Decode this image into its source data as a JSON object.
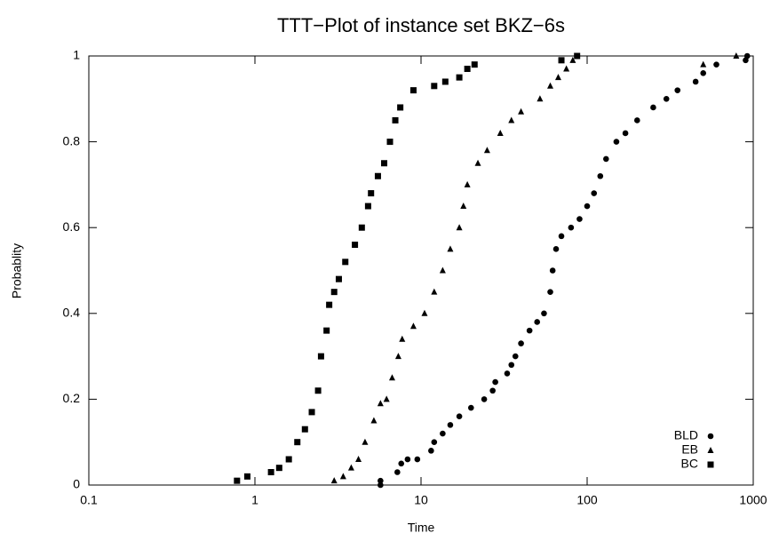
{
  "chart_data": {
    "type": "scatter",
    "title": "TTT−Plot of instance set BKZ−6s",
    "xlabel": "Time",
    "ylabel": "Probablity",
    "xscale": "log",
    "xlim": [
      0.1,
      1000
    ],
    "xticks": [
      0.1,
      1,
      10,
      100,
      1000
    ],
    "ylim": [
      0,
      1
    ],
    "yticks": [
      0,
      0.2,
      0.4,
      0.6,
      0.8,
      1
    ],
    "legend": "lower right",
    "series": [
      {
        "name": "BLD",
        "marker": "circle",
        "color": "#000000",
        "x": [
          5.7,
          5.7,
          7.2,
          7.6,
          8.3,
          9.5,
          11.5,
          12,
          13.5,
          15,
          17,
          20,
          24,
          27,
          28,
          33,
          35,
          37,
          40,
          45,
          50,
          55,
          60,
          62,
          65,
          70,
          80,
          90,
          100,
          110,
          120,
          130,
          150,
          170,
          200,
          250,
          300,
          350,
          450,
          500,
          600,
          900,
          920
        ],
        "y": [
          0.0,
          0.01,
          0.03,
          0.05,
          0.06,
          0.06,
          0.08,
          0.1,
          0.12,
          0.14,
          0.16,
          0.18,
          0.2,
          0.22,
          0.24,
          0.26,
          0.28,
          0.3,
          0.33,
          0.36,
          0.38,
          0.4,
          0.45,
          0.5,
          0.55,
          0.58,
          0.6,
          0.62,
          0.65,
          0.68,
          0.72,
          0.76,
          0.8,
          0.82,
          0.85,
          0.88,
          0.9,
          0.92,
          0.94,
          0.96,
          0.98,
          0.99,
          1.0
        ]
      },
      {
        "name": "EB",
        "marker": "triangle",
        "color": "#000000",
        "x": [
          3.0,
          3.4,
          3.8,
          4.2,
          4.6,
          5.2,
          5.7,
          6.2,
          6.7,
          7.3,
          7.7,
          9,
          10.5,
          12,
          13.5,
          15,
          17,
          18,
          19,
          22,
          25,
          30,
          35,
          40,
          52,
          60,
          67,
          75,
          82,
          500,
          790
        ],
        "y": [
          0.01,
          0.02,
          0.04,
          0.06,
          0.1,
          0.15,
          0.19,
          0.2,
          0.25,
          0.3,
          0.34,
          0.37,
          0.4,
          0.45,
          0.5,
          0.55,
          0.6,
          0.65,
          0.7,
          0.75,
          0.78,
          0.82,
          0.85,
          0.87,
          0.9,
          0.93,
          0.95,
          0.97,
          0.99,
          0.98,
          1.0
        ]
      },
      {
        "name": "BC",
        "marker": "square",
        "color": "#000000",
        "x": [
          0.78,
          0.9,
          1.25,
          1.4,
          1.6,
          1.8,
          2.0,
          2.2,
          2.4,
          2.5,
          2.7,
          2.8,
          3.0,
          3.2,
          3.5,
          4.0,
          4.4,
          4.8,
          5.0,
          5.5,
          6.0,
          6.5,
          7.0,
          7.5,
          9,
          12,
          14,
          17,
          19,
          21,
          70,
          87
        ],
        "y": [
          0.01,
          0.02,
          0.03,
          0.04,
          0.06,
          0.1,
          0.13,
          0.17,
          0.22,
          0.3,
          0.36,
          0.42,
          0.45,
          0.48,
          0.52,
          0.56,
          0.6,
          0.65,
          0.68,
          0.72,
          0.75,
          0.8,
          0.85,
          0.88,
          0.92,
          0.93,
          0.94,
          0.95,
          0.97,
          0.98,
          0.99,
          1.0
        ]
      }
    ]
  }
}
